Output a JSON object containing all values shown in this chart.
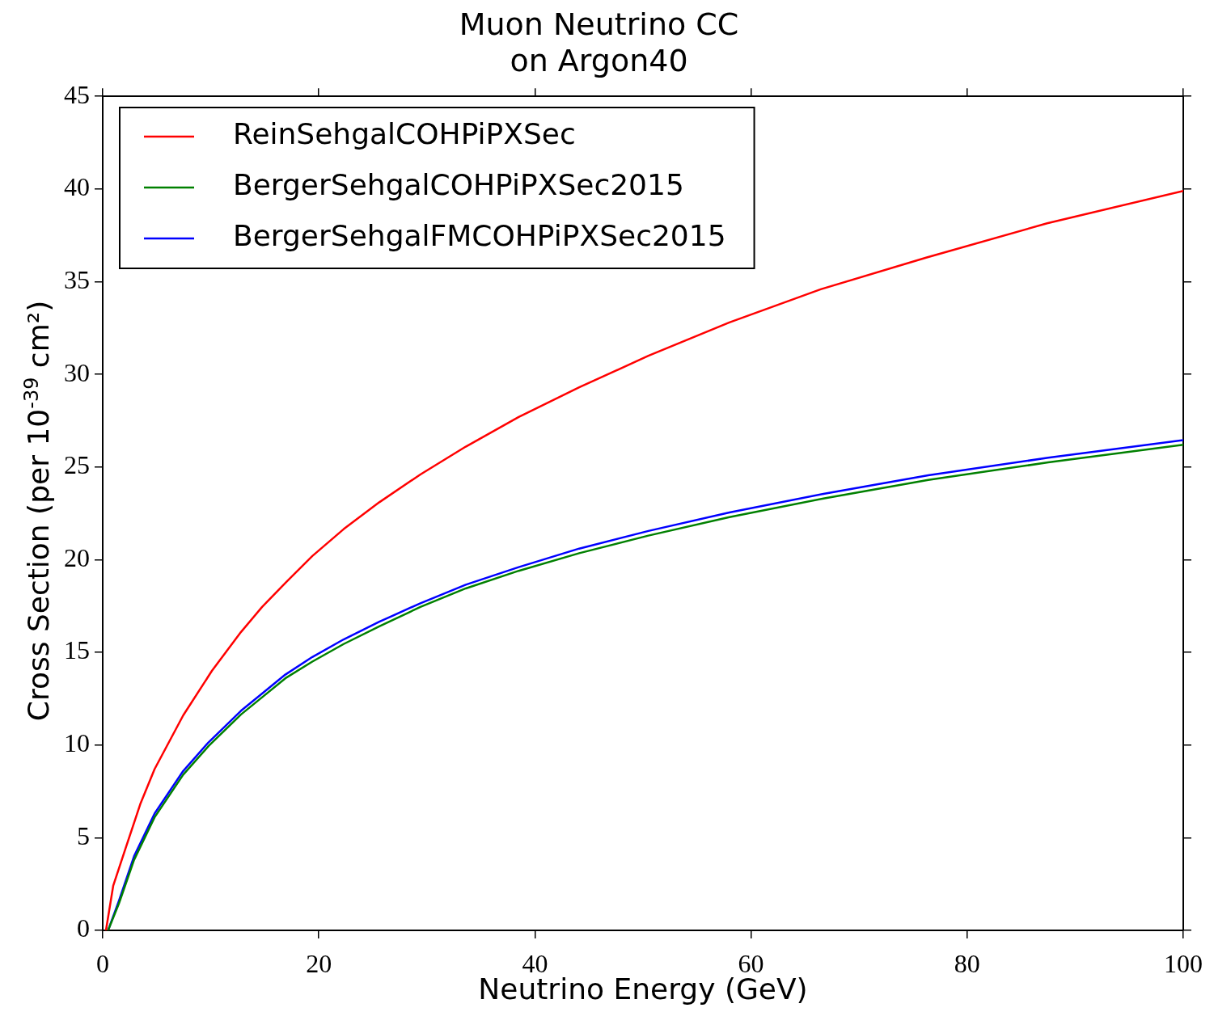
{
  "chart_data": {
    "type": "line",
    "title": "Muon Neutrino CC\non Argon40",
    "xlabel": "Neutrino Energy (GeV)",
    "ylabel": "Cross Section (per 10$^{-39}$ cm²)",
    "xlim": [
      0,
      100
    ],
    "xticks": [
      0,
      20,
      40,
      60,
      80,
      100
    ],
    "ylim": [
      0,
      45
    ],
    "yticks": [
      0,
      5,
      10,
      15,
      20,
      25,
      30,
      35,
      40,
      45
    ],
    "grid": false,
    "legend": "top left",
    "marker": "none",
    "line_style": "solid",
    "series": [
      {
        "name": "ReinSehgalCOHPiPXSec",
        "color": "#ff0000",
        "x": [
          0.3,
          0.97,
          2.1,
          3.5,
          4.8,
          7.45,
          10.1,
          12.8,
          14.75,
          17.0,
          19.4,
          22.3,
          25.6,
          29.4,
          33.6,
          38.5,
          44.1,
          50.5,
          58.0,
          66.5,
          76.2,
          87.4,
          100
        ],
        "values": [
          0,
          2.4,
          4.4,
          6.85,
          8.7,
          11.6,
          14.0,
          16.1,
          17.45,
          18.8,
          20.2,
          21.65,
          23.1,
          24.6,
          26.1,
          27.7,
          29.3,
          31.0,
          32.8,
          34.6,
          36.3,
          38.15,
          39.9
        ]
      },
      {
        "name": "BergerSehgalCOHPiPXSec2015",
        "color": "#008000",
        "x": [
          0.5,
          1.5,
          2.9,
          4.8,
          7.45,
          9.8,
          12.8,
          14.8,
          16.9,
          19.4,
          22.3,
          25.6,
          29.4,
          33.6,
          38.5,
          44.1,
          50.5,
          58.0,
          66.7,
          76.4,
          87.5,
          100
        ],
        "values": [
          0,
          1.45,
          3.8,
          6.1,
          8.4,
          9.95,
          11.65,
          12.6,
          13.6,
          14.5,
          15.45,
          16.4,
          17.45,
          18.45,
          19.4,
          20.35,
          21.3,
          22.3,
          23.3,
          24.3,
          25.25,
          26.2
        ]
      },
      {
        "name": "BergerSehgalFMCOHPiPXSec2015",
        "color": "#0000ff",
        "x": [
          0.5,
          1.5,
          2.9,
          4.8,
          7.45,
          9.8,
          12.8,
          14.8,
          16.9,
          19.4,
          22.3,
          25.6,
          29.4,
          33.6,
          38.5,
          44.1,
          50.5,
          58.0,
          66.7,
          76.4,
          87.5,
          100
        ],
        "values": [
          0,
          1.6,
          4.0,
          6.3,
          8.6,
          10.15,
          11.85,
          12.8,
          13.8,
          14.75,
          15.7,
          16.65,
          17.65,
          18.65,
          19.6,
          20.6,
          21.55,
          22.55,
          23.55,
          24.55,
          25.5,
          26.45
        ]
      }
    ]
  }
}
